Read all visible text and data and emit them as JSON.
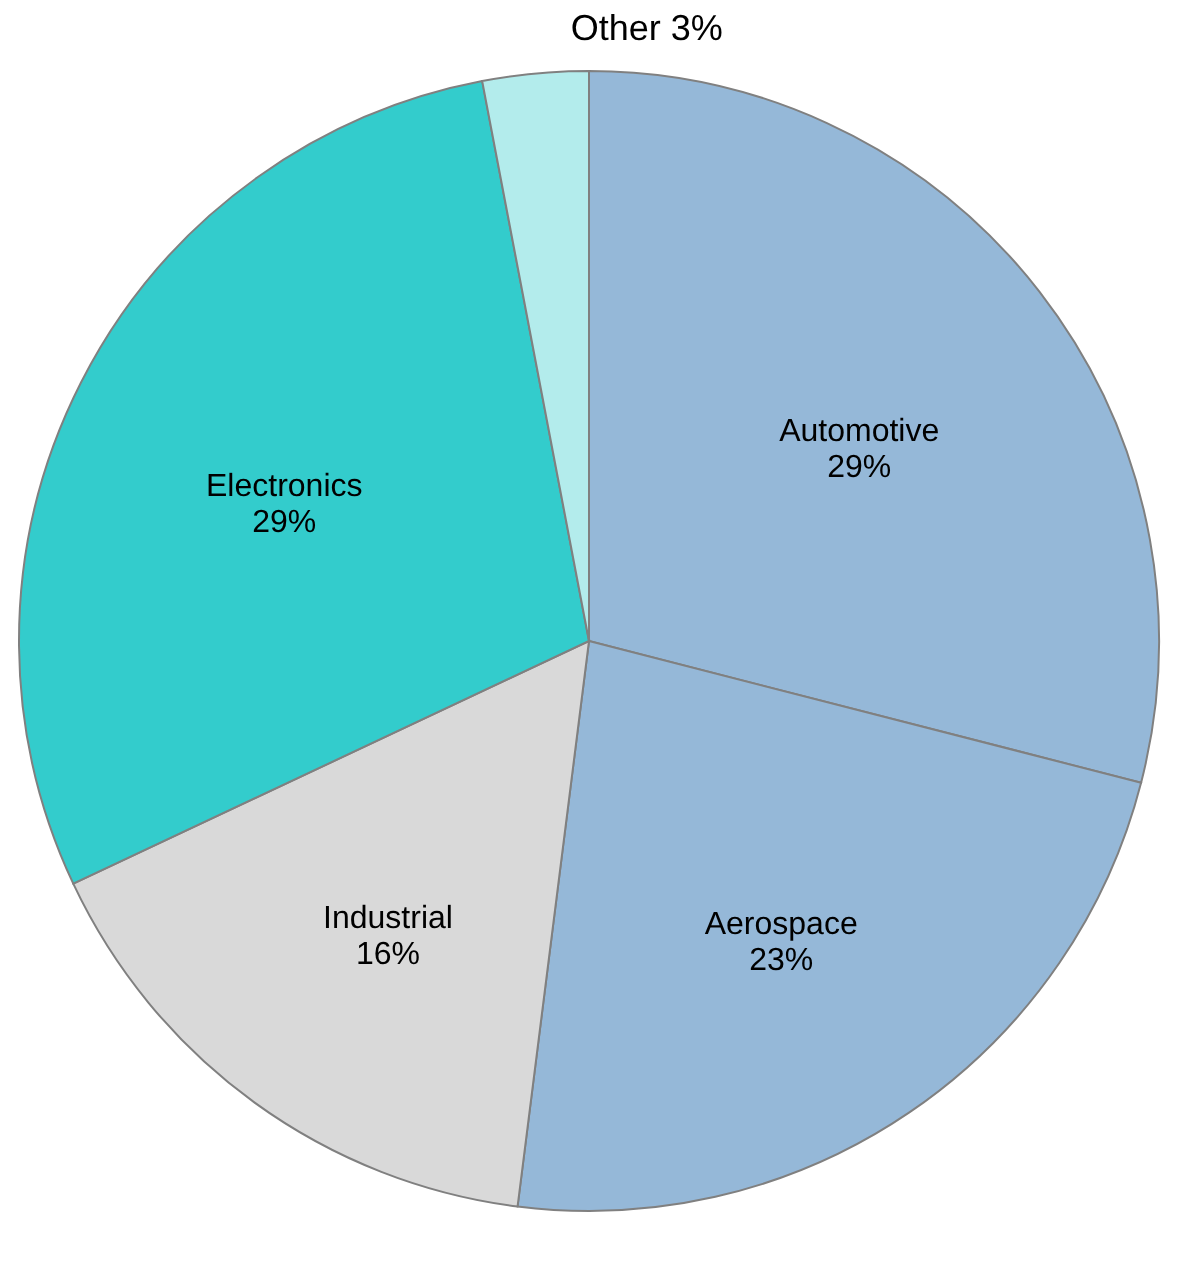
{
  "chart_data": {
    "type": "pie",
    "categories": [
      "Automotive",
      "Aerospace",
      "Industrial",
      "Electronics",
      "Other"
    ],
    "values": [
      29,
      23,
      16,
      29,
      3
    ],
    "value_labels": [
      "29%",
      "23%",
      "16%",
      "29%",
      "3%"
    ],
    "colors": [
      "#95b8d8",
      "#95b8d8",
      "#d9d9d9",
      "#33cccc",
      "#b3ecec"
    ]
  }
}
